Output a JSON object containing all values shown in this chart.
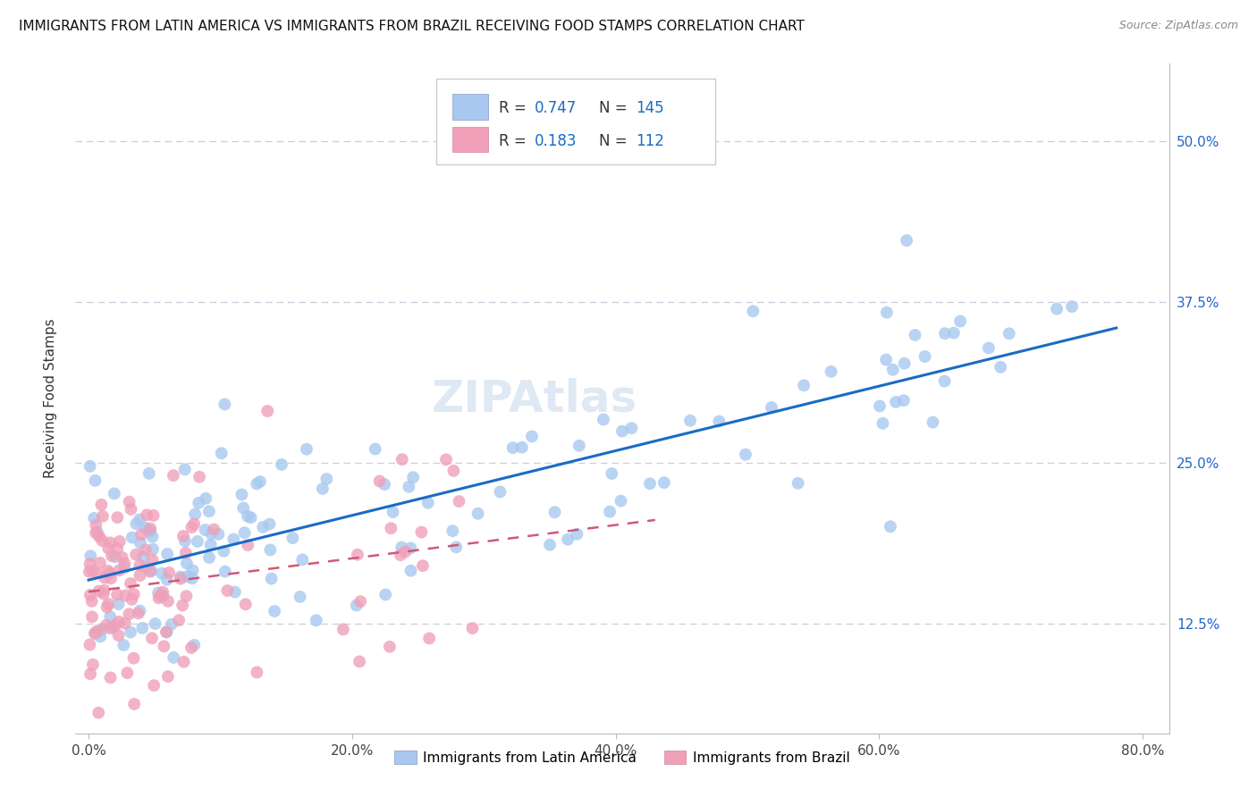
{
  "title": "IMMIGRANTS FROM LATIN AMERICA VS IMMIGRANTS FROM BRAZIL RECEIVING FOOD STAMPS CORRELATION CHART",
  "source": "Source: ZipAtlas.com",
  "ylabel": "Receiving Food Stamps",
  "xlabel_ticks": [
    "0.0%",
    "",
    "",
    "",
    "80.0%"
  ],
  "ylabel_ticks": [
    "12.5%",
    "25.0%",
    "37.5%",
    "50.0%"
  ],
  "xmin": -0.01,
  "xmax": 0.82,
  "ymin": 0.04,
  "ymax": 0.56,
  "legend_r1": "0.747",
  "legend_n1": "145",
  "legend_r2": "0.183",
  "legend_n2": "112",
  "blue_color": "#a8c8f0",
  "pink_color": "#f0a0b8",
  "blue_line_color": "#1a6bc4",
  "pink_line_color": "#d05878",
  "title_fontsize": 11,
  "watermark": "ZIPAtlas",
  "grid_color": "#ccccdd",
  "seed": 77
}
